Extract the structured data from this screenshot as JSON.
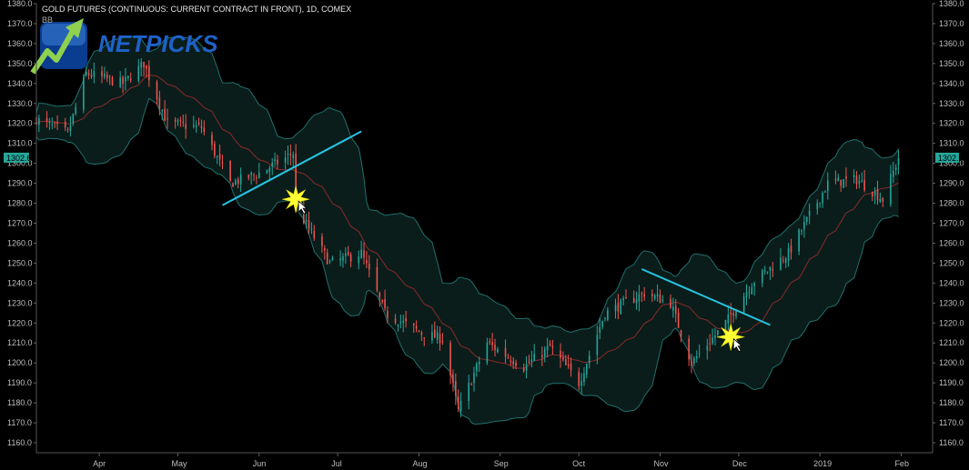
{
  "chart_data": {
    "type": "candlestick",
    "title": "GOLD FUTURES (CONTINUOUS: CURRENT CONTRACT IN FRONT), 1D, COMEX",
    "indicator_label": "BB",
    "logo_text": "NETPICKS",
    "current_price_label": "1302.6",
    "current_price": 1302.6,
    "ylim": [
      1155,
      1380
    ],
    "y_ticks": [
      1160,
      1170,
      1180,
      1190,
      1200,
      1210,
      1220,
      1230,
      1240,
      1250,
      1260,
      1270,
      1280,
      1290,
      1300,
      1310,
      1320,
      1330,
      1340,
      1350,
      1360,
      1370,
      1380
    ],
    "y_tick_labels": [
      "1160.0",
      "1170.0",
      "1180.0",
      "1190.0",
      "1200.0",
      "1210.0",
      "1220.0",
      "1230.0",
      "1240.0",
      "1250.0",
      "1260.0",
      "1270.0",
      "1280.0",
      "1290.0",
      "1300.0",
      "1310.0",
      "1320.0",
      "1330.0",
      "1340.0",
      "1350.0",
      "1360.0",
      "1370.0",
      "1380.0"
    ],
    "x_months": [
      {
        "label": "Apr",
        "date": "2018-04-01"
      },
      {
        "label": "May",
        "date": "2018-05-01"
      },
      {
        "label": "Jun",
        "date": "2018-06-01"
      },
      {
        "label": "Jul",
        "date": "2018-07-01"
      },
      {
        "label": "Aug",
        "date": "2018-08-01"
      },
      {
        "label": "Sep",
        "date": "2018-09-01"
      },
      {
        "label": "Oct",
        "date": "2018-10-01"
      },
      {
        "label": "Nov",
        "date": "2018-11-01"
      },
      {
        "label": "Dec",
        "date": "2018-12-01"
      },
      {
        "label": "2019",
        "date": "2019-01-01"
      },
      {
        "label": "Feb",
        "date": "2019-02-01"
      }
    ],
    "x_range": [
      "2018-03-08",
      "2019-02-13"
    ],
    "price_path": [
      {
        "date": "2018-03-08",
        "close": 1322
      },
      {
        "date": "2018-03-20",
        "close": 1315
      },
      {
        "date": "2018-03-27",
        "close": 1345
      },
      {
        "date": "2018-04-10",
        "close": 1340
      },
      {
        "date": "2018-04-18",
        "close": 1350
      },
      {
        "date": "2018-04-27",
        "close": 1320
      },
      {
        "date": "2018-05-10",
        "close": 1318
      },
      {
        "date": "2018-05-21",
        "close": 1290
      },
      {
        "date": "2018-06-01",
        "close": 1295
      },
      {
        "date": "2018-06-14",
        "close": 1305
      },
      {
        "date": "2018-06-15",
        "close": 1278
      },
      {
        "date": "2018-06-28",
        "close": 1250
      },
      {
        "date": "2018-07-10",
        "close": 1255
      },
      {
        "date": "2018-07-19",
        "close": 1225
      },
      {
        "date": "2018-08-02",
        "close": 1215
      },
      {
        "date": "2018-08-10",
        "close": 1212
      },
      {
        "date": "2018-08-16",
        "close": 1176
      },
      {
        "date": "2018-08-27",
        "close": 1210
      },
      {
        "date": "2018-09-10",
        "close": 1198
      },
      {
        "date": "2018-09-20",
        "close": 1208
      },
      {
        "date": "2018-10-01",
        "close": 1190
      },
      {
        "date": "2018-10-11",
        "close": 1225
      },
      {
        "date": "2018-10-26",
        "close": 1235
      },
      {
        "date": "2018-11-05",
        "close": 1230
      },
      {
        "date": "2018-11-13",
        "close": 1200
      },
      {
        "date": "2018-11-26",
        "close": 1220
      },
      {
        "date": "2018-12-06",
        "close": 1240
      },
      {
        "date": "2018-12-20",
        "close": 1255
      },
      {
        "date": "2019-01-04",
        "close": 1290
      },
      {
        "date": "2019-01-15",
        "close": 1292
      },
      {
        "date": "2019-01-25",
        "close": 1282
      },
      {
        "date": "2019-01-31",
        "close": 1302.6
      }
    ],
    "trendlines": [
      {
        "color": "#27c4e0",
        "start": {
          "date": "2018-05-18",
          "price": 1279
        },
        "end": {
          "date": "2018-07-10",
          "price": 1316
        }
      },
      {
        "color": "#27c4e0",
        "start": {
          "date": "2018-10-25",
          "price": 1247
        },
        "end": {
          "date": "2018-12-13",
          "price": 1219
        }
      }
    ],
    "markers": [
      {
        "type": "starburst",
        "date": "2018-06-15",
        "price": 1282,
        "color": "#ffff33"
      },
      {
        "type": "starburst",
        "date": "2018-11-28",
        "price": 1213,
        "color": "#ffff33"
      }
    ],
    "colors": {
      "up": "#26a69a",
      "down": "#ef5350",
      "band": "#20706c",
      "basis": "#8b2a2a",
      "background": "#000000",
      "price_badge": "#26a69a"
    },
    "bollinger": {
      "period": 20,
      "stddev": 2
    }
  }
}
